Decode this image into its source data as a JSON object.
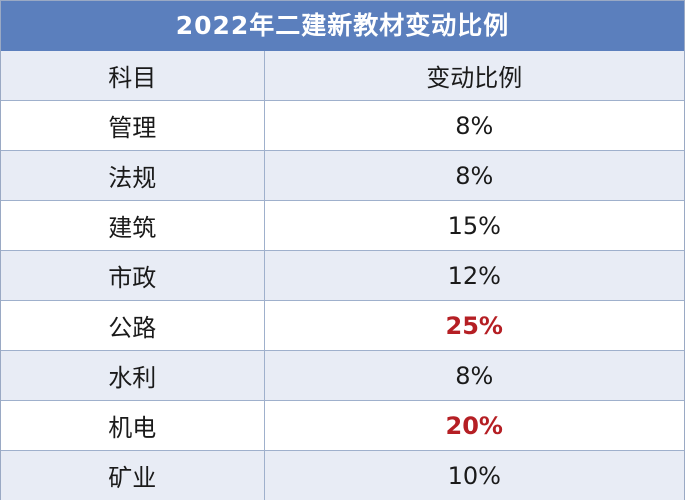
{
  "title": "2022年二建新教材变动比例",
  "headers": {
    "subject": "科目",
    "ratio": "变动比例"
  },
  "rows": [
    {
      "subject": "管理",
      "ratio": "8%",
      "highlight": false
    },
    {
      "subject": "法规",
      "ratio": "8%",
      "highlight": false
    },
    {
      "subject": "建筑",
      "ratio": "15%",
      "highlight": false
    },
    {
      "subject": "市政",
      "ratio": "12%",
      "highlight": false
    },
    {
      "subject": "公路",
      "ratio": "25%",
      "highlight": true
    },
    {
      "subject": "水利",
      "ratio": "8%",
      "highlight": false
    },
    {
      "subject": "机电",
      "ratio": "20%",
      "highlight": true
    },
    {
      "subject": "矿业",
      "ratio": "10%",
      "highlight": false
    }
  ],
  "colors": {
    "title_bg": "#5b7fbd",
    "row_alt_bg": "#e8ecf5",
    "highlight_text": "#b51f24"
  }
}
